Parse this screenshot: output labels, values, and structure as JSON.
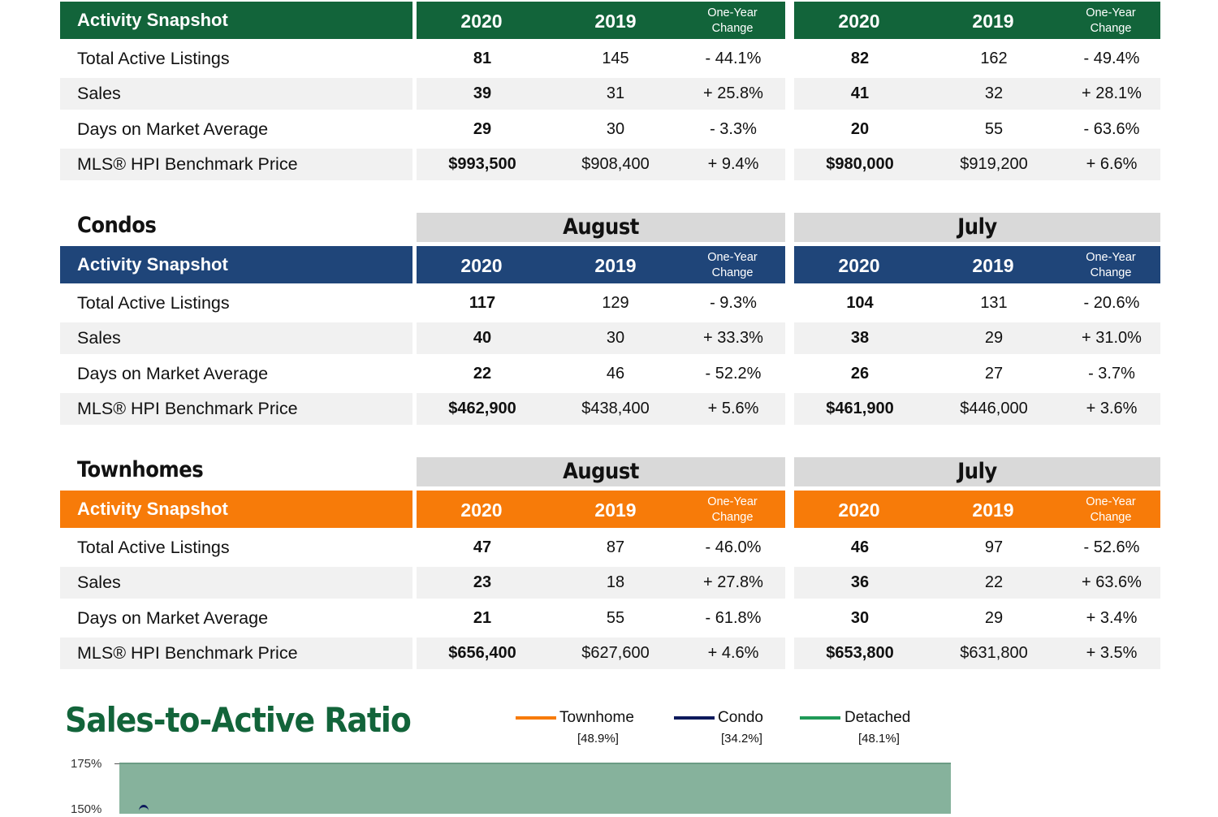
{
  "detached": {
    "header": {
      "label": "Activity Snapshot",
      "aug_2020": "2020",
      "aug_2019": "2019",
      "aug_change": [
        "One-Year",
        "Change"
      ],
      "jul_2020": "2020",
      "jul_2019": "2019",
      "jul_change": [
        "One-Year",
        "Change"
      ]
    },
    "rows": [
      {
        "label": "Total Active Listings",
        "a20": "81",
        "a19": "145",
        "ach": "- 44.1%",
        "j20": "82",
        "j19": "162",
        "jch": "- 49.4%"
      },
      {
        "label": "Sales",
        "a20": "39",
        "a19": "31",
        "ach": "+ 25.8%",
        "j20": "41",
        "j19": "32",
        "jch": "+ 28.1%"
      },
      {
        "label": "Days on Market Average",
        "a20": "29",
        "a19": "30",
        "ach": "- 3.3%",
        "j20": "20",
        "j19": "55",
        "jch": "- 63.6%"
      },
      {
        "label": "MLS® HPI Benchmark Price",
        "a20": "$993,500",
        "a19": "$908,400",
        "ach": "+ 9.4%",
        "j20": "$980,000",
        "j19": "$919,200",
        "jch": "+ 6.6%"
      }
    ]
  },
  "condos": {
    "title": "Condos",
    "month_a": "August",
    "month_b": "July",
    "header": {
      "label": "Activity Snapshot",
      "aug_2020": "2020",
      "aug_2019": "2019",
      "aug_change": [
        "One-Year",
        "Change"
      ],
      "jul_2020": "2020",
      "jul_2019": "2019",
      "jul_change": [
        "One-Year",
        "Change"
      ]
    },
    "rows": [
      {
        "label": "Total Active Listings",
        "a20": "117",
        "a19": "129",
        "ach": "- 9.3%",
        "j20": "104",
        "j19": "131",
        "jch": "- 20.6%"
      },
      {
        "label": "Sales",
        "a20": "40",
        "a19": "30",
        "ach": "+ 33.3%",
        "j20": "38",
        "j19": "29",
        "jch": "+ 31.0%"
      },
      {
        "label": "Days on Market Average",
        "a20": "22",
        "a19": "46",
        "ach": "- 52.2%",
        "j20": "26",
        "j19": "27",
        "jch": "- 3.7%"
      },
      {
        "label": "MLS® HPI Benchmark Price",
        "a20": "$462,900",
        "a19": "$438,400",
        "ach": "+ 5.6%",
        "j20": "$461,900",
        "j19": "$446,000",
        "jch": "+ 3.6%"
      }
    ]
  },
  "townhomes": {
    "title": "Townhomes",
    "month_a": "August",
    "month_b": "July",
    "header": {
      "label": "Activity Snapshot",
      "aug_2020": "2020",
      "aug_2019": "2019",
      "aug_change": [
        "One-Year",
        "Change"
      ],
      "jul_2020": "2020",
      "jul_2019": "2019",
      "jul_change": [
        "One-Year",
        "Change"
      ]
    },
    "rows": [
      {
        "label": "Total Active Listings",
        "a20": "47",
        "a19": "87",
        "ach": "- 46.0%",
        "j20": "46",
        "j19": "97",
        "jch": "- 52.6%"
      },
      {
        "label": "Sales",
        "a20": "23",
        "a19": "18",
        "ach": "+ 27.8%",
        "j20": "36",
        "j19": "22",
        "jch": "+ 63.6%"
      },
      {
        "label": "Days on Market Average",
        "a20": "21",
        "a19": "55",
        "ach": "- 61.8%",
        "j20": "30",
        "j19": "29",
        "jch": "+ 3.4%"
      },
      {
        "label": "MLS® HPI Benchmark Price",
        "a20": "$656,400",
        "a19": "$627,600",
        "ach": "+ 4.6%",
        "j20": "$653,800",
        "j19": "$631,800",
        "jch": "+ 3.5%"
      }
    ]
  },
  "colors": {
    "detached": "#12643a",
    "condo": "#1f4579",
    "townhome": "#f77b09",
    "chart_fill": "#86b29c",
    "row_shade": "#f1f1f1"
  },
  "chart_data": {
    "type": "line",
    "title": "Sales-to-Active Ratio",
    "series": [
      {
        "name": "Townhome",
        "label_value": "[48.9%]",
        "color": "#f77b09"
      },
      {
        "name": "Condo",
        "label_value": "[34.2%]",
        "color": "#1f4579"
      },
      {
        "name": "Detached",
        "label_value": "[48.1%]",
        "color": "#12643a"
      }
    ],
    "y_ticks": [
      "175%",
      "150%"
    ],
    "ylim": [
      150,
      175
    ],
    "legend": "top"
  }
}
